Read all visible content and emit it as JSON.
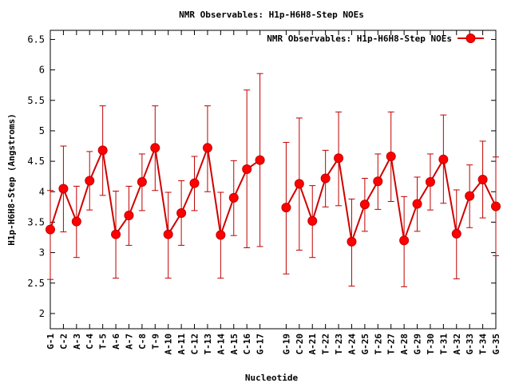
{
  "chart_data": {
    "type": "line",
    "title": "NMR Observables: H1p-H6H8-Step NOEs",
    "xlabel": "Nucleotide",
    "ylabel": "H1p-H6H8-Step (Angstroms)",
    "ylim": [
      1.75,
      6.65
    ],
    "yticks": [
      "2",
      "2.5",
      "3",
      "3.5",
      "4",
      "4.5",
      "5",
      "5.5",
      "6",
      "6.5"
    ],
    "grid": false,
    "legend_position": "top-right",
    "series": [
      {
        "name": "NMR Observables: H1p-H6H8-Step NOEs",
        "color": "#ff0000",
        "line_color": "#d00000",
        "errorbar_color": "#c00000",
        "points": [
          {
            "x": 0,
            "label": "G-1",
            "y": 3.38,
            "low": 2.56,
            "high": 4.02
          },
          {
            "x": 1,
            "label": "C-2",
            "y": 4.05,
            "low": 3.34,
            "high": 4.75
          },
          {
            "x": 2,
            "label": "A-3",
            "y": 3.51,
            "low": 2.92,
            "high": 4.09
          },
          {
            "x": 3,
            "label": "C-4",
            "y": 4.18,
            "low": 3.7,
            "high": 4.66
          },
          {
            "x": 4,
            "label": "T-5",
            "y": 4.68,
            "low": 3.94,
            "high": 5.41
          },
          {
            "x": 5,
            "label": "A-6",
            "y": 3.3,
            "low": 2.58,
            "high": 4.01
          },
          {
            "x": 6,
            "label": "A-7",
            "y": 3.61,
            "low": 3.12,
            "high": 4.09
          },
          {
            "x": 7,
            "label": "C-8",
            "y": 4.16,
            "low": 3.69,
            "high": 4.62
          },
          {
            "x": 8,
            "label": "T-9",
            "y": 4.72,
            "low": 4.02,
            "high": 5.41
          },
          {
            "x": 9,
            "label": "A-10",
            "y": 3.3,
            "low": 2.58,
            "high": 3.99
          },
          {
            "x": 10,
            "label": "A-11",
            "y": 3.65,
            "low": 3.12,
            "high": 4.18
          },
          {
            "x": 11,
            "label": "C-12",
            "y": 4.14,
            "low": 3.69,
            "high": 4.58
          },
          {
            "x": 12,
            "label": "T-13",
            "y": 4.72,
            "low": 4.0,
            "high": 5.41
          },
          {
            "x": 13,
            "label": "A-14",
            "y": 3.29,
            "low": 2.58,
            "high": 3.99
          },
          {
            "x": 14,
            "label": "A-15",
            "y": 3.9,
            "low": 3.28,
            "high": 4.51
          },
          {
            "x": 15,
            "label": "C-16",
            "y": 4.37,
            "low": 3.08,
            "high": 5.67
          },
          {
            "x": 16,
            "label": "G-17",
            "y": 4.52,
            "low": 3.1,
            "high": 5.94
          },
          {
            "x": 18,
            "label": "G-19",
            "y": 3.74,
            "low": 2.65,
            "high": 4.81
          },
          {
            "x": 19,
            "label": "C-20",
            "y": 4.13,
            "low": 3.04,
            "high": 5.21
          },
          {
            "x": 20,
            "label": "A-21",
            "y": 3.52,
            "low": 2.92,
            "high": 4.1
          },
          {
            "x": 21,
            "label": "T-22",
            "y": 4.22,
            "low": 3.75,
            "high": 4.68
          },
          {
            "x": 22,
            "label": "T-23",
            "y": 4.55,
            "low": 3.77,
            "high": 5.31
          },
          {
            "x": 23,
            "label": "A-24",
            "y": 3.18,
            "low": 2.45,
            "high": 3.88
          },
          {
            "x": 24,
            "label": "G-25",
            "y": 3.79,
            "low": 3.35,
            "high": 4.22
          },
          {
            "x": 25,
            "label": "T-26",
            "y": 4.17,
            "low": 3.71,
            "high": 4.62
          },
          {
            "x": 26,
            "label": "T-27",
            "y": 4.58,
            "low": 3.84,
            "high": 5.31
          },
          {
            "x": 27,
            "label": "A-28",
            "y": 3.2,
            "low": 2.44,
            "high": 3.92
          },
          {
            "x": 28,
            "label": "G-29",
            "y": 3.8,
            "low": 3.35,
            "high": 4.24
          },
          {
            "x": 29,
            "label": "T-30",
            "y": 4.16,
            "low": 3.7,
            "high": 4.62
          },
          {
            "x": 30,
            "label": "T-31",
            "y": 4.53,
            "low": 3.81,
            "high": 5.26
          },
          {
            "x": 31,
            "label": "A-32",
            "y": 3.31,
            "low": 2.57,
            "high": 4.03
          },
          {
            "x": 32,
            "label": "G-33",
            "y": 3.93,
            "low": 3.41,
            "high": 4.44
          },
          {
            "x": 33,
            "label": "T-34",
            "y": 4.2,
            "low": 3.57,
            "high": 4.83
          },
          {
            "x": 34,
            "label": "G-35",
            "y": 3.76,
            "low": 2.95,
            "high": 4.57
          }
        ]
      }
    ]
  }
}
